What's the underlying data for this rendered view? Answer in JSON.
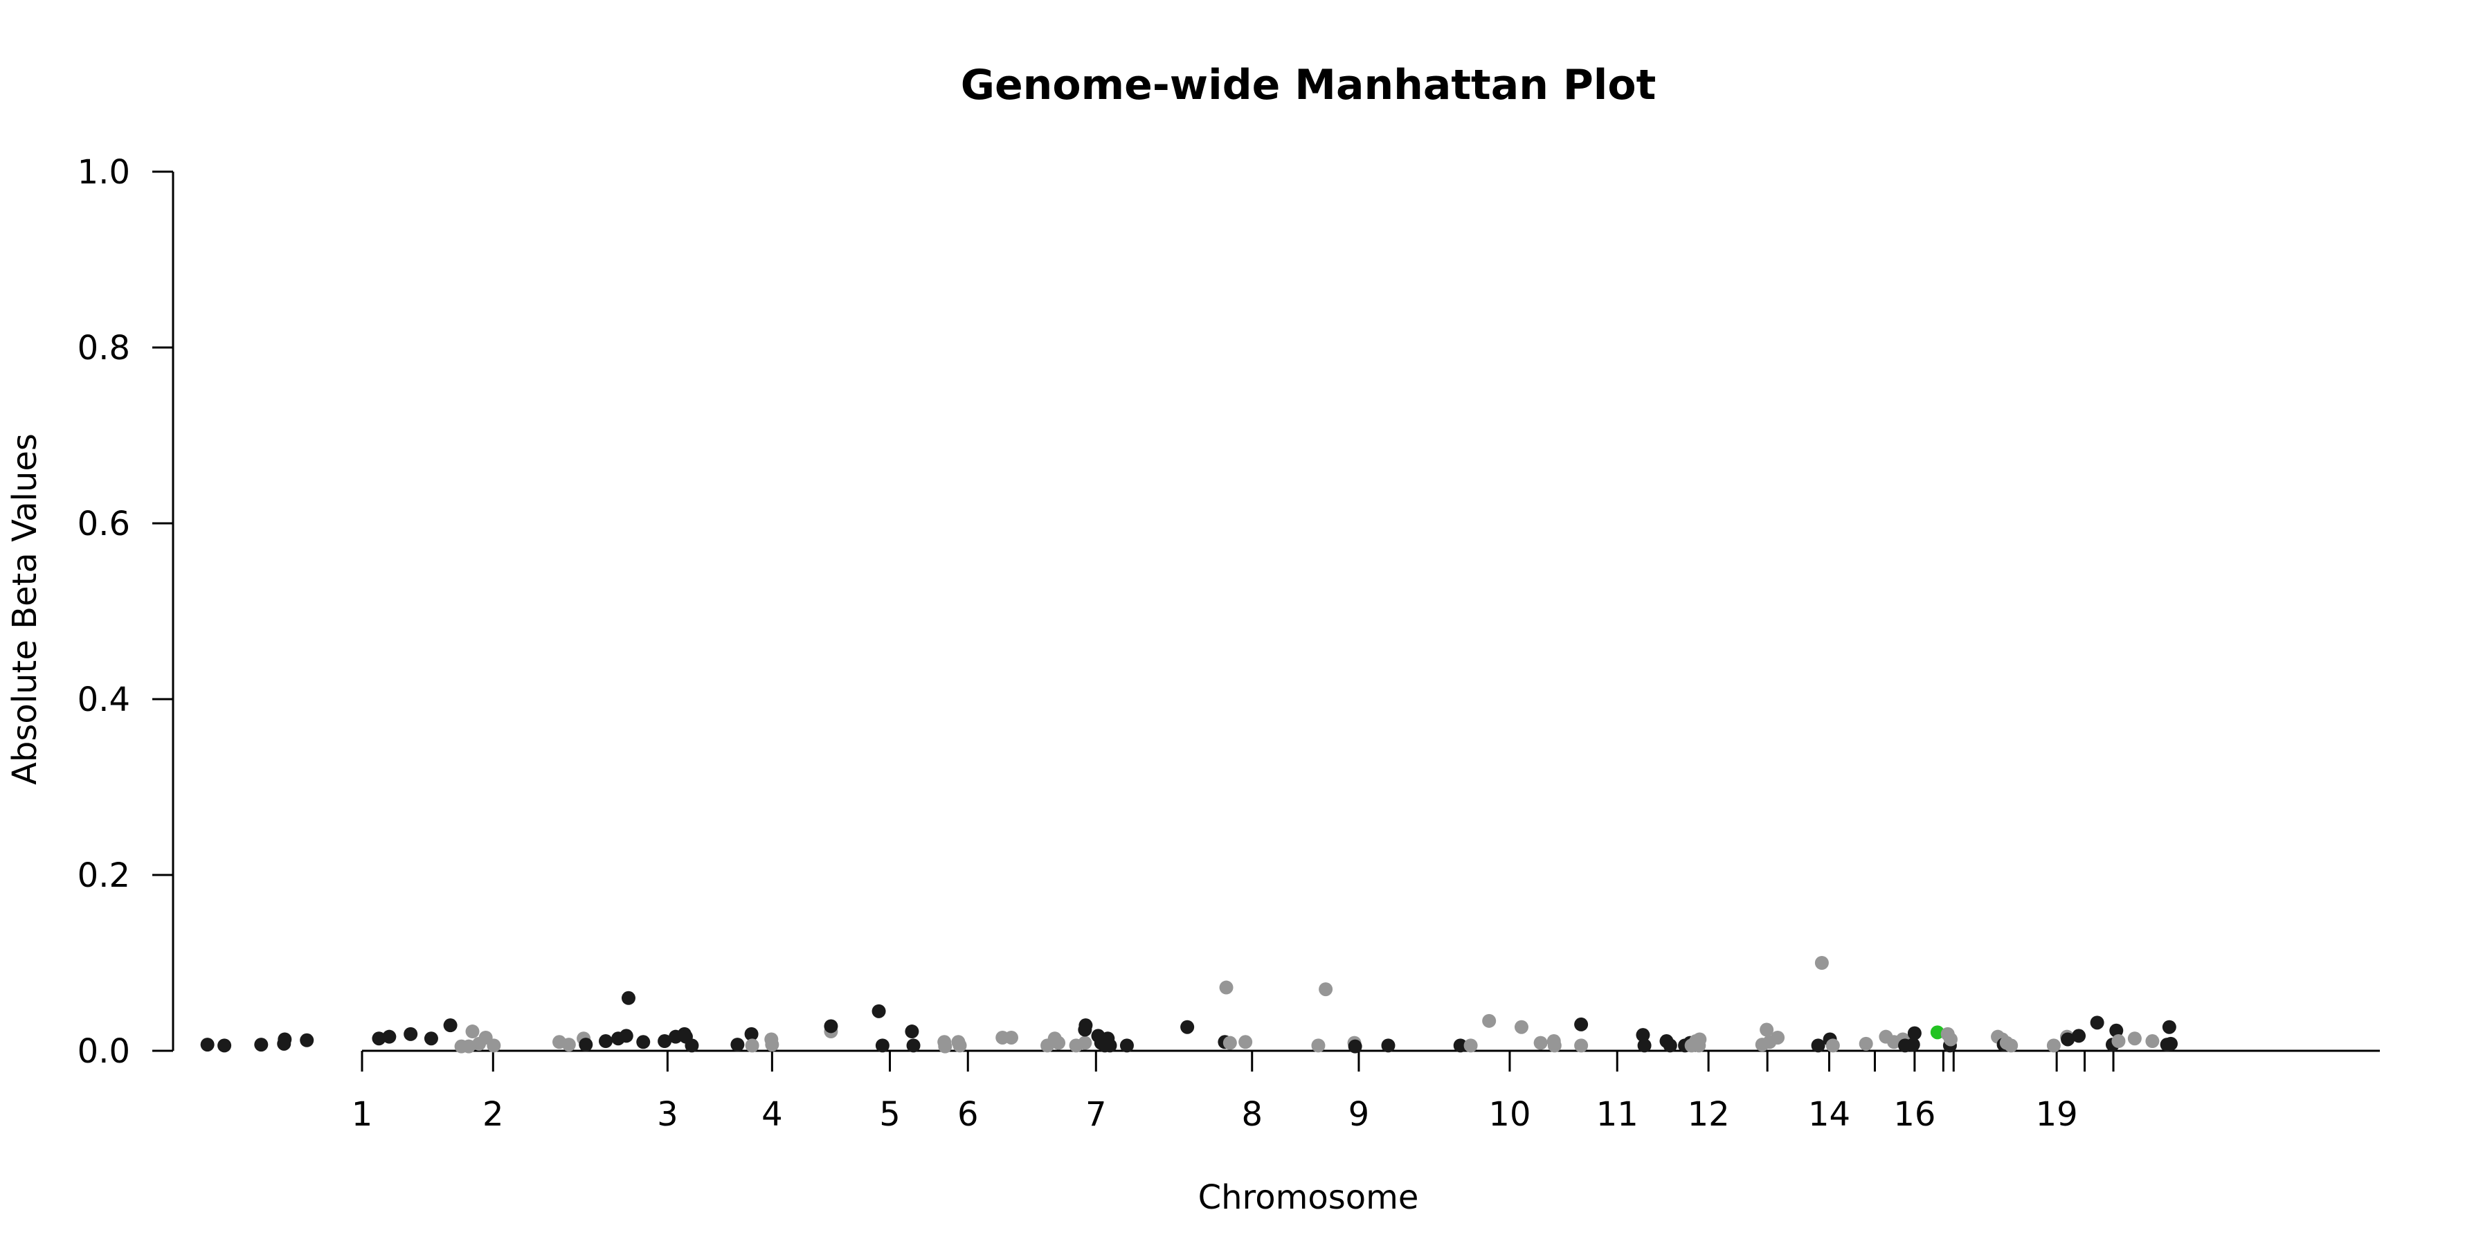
{
  "chart_data": {
    "type": "scatter",
    "title": "Genome-wide Manhattan Plot",
    "xlabel": "Chromosome",
    "ylabel": "Absolute Beta Values",
    "ylim": [
      0,
      1
    ],
    "xlim": [
      0,
      2993
    ],
    "y_ticks": [
      {
        "value": 0.0,
        "label": "0.0"
      },
      {
        "value": 0.2,
        "label": "0.2"
      },
      {
        "value": 0.4,
        "label": "0.4"
      },
      {
        "value": 0.6,
        "label": "0.6"
      },
      {
        "value": 0.8,
        "label": "0.8"
      },
      {
        "value": 1.0,
        "label": "1.0"
      }
    ],
    "x_axis_start": 252,
    "x_ticks": [
      {
        "pos": 252,
        "label": "1"
      },
      {
        "pos": 430,
        "label": "2"
      },
      {
        "pos": 667,
        "label": "3"
      },
      {
        "pos": 809,
        "label": "4"
      },
      {
        "pos": 969,
        "label": "5"
      },
      {
        "pos": 1075,
        "label": "6"
      },
      {
        "pos": 1249,
        "label": "7"
      },
      {
        "pos": 1461,
        "label": "8"
      },
      {
        "pos": 1606,
        "label": "9"
      },
      {
        "pos": 1811,
        "label": "10"
      },
      {
        "pos": 1957,
        "label": "11"
      },
      {
        "pos": 2081,
        "label": "12"
      },
      {
        "pos": 2161,
        "label": ""
      },
      {
        "pos": 2245,
        "label": "14"
      },
      {
        "pos": 2307,
        "label": ""
      },
      {
        "pos": 2361,
        "label": "16"
      },
      {
        "pos": 2400,
        "label": ""
      },
      {
        "pos": 2414,
        "label": ""
      },
      {
        "pos": 2554,
        "label": "19"
      },
      {
        "pos": 2592,
        "label": ""
      },
      {
        "pos": 2631,
        "label": ""
      }
    ],
    "colors": {
      "dark": "#1a1a1a",
      "light": "#969696",
      "highlight": "#22c322"
    },
    "grid": false,
    "legend": "none",
    "points": [
      {
        "x": 42,
        "y": 0.007,
        "c": "dark"
      },
      {
        "x": 65,
        "y": 0.006,
        "c": "dark"
      },
      {
        "x": 115,
        "y": 0.007,
        "c": "dark"
      },
      {
        "x": 146,
        "y": 0.008,
        "c": "dark"
      },
      {
        "x": 147,
        "y": 0.013,
        "c": "dark"
      },
      {
        "x": 177,
        "y": 0.012,
        "c": "dark"
      },
      {
        "x": 275,
        "y": 0.014,
        "c": "dark"
      },
      {
        "x": 289,
        "y": 0.016,
        "c": "dark"
      },
      {
        "x": 318,
        "y": 0.019,
        "c": "dark"
      },
      {
        "x": 346,
        "y": 0.014,
        "c": "dark"
      },
      {
        "x": 372,
        "y": 0.029,
        "c": "dark"
      },
      {
        "x": 387,
        "y": 0.005,
        "c": "light"
      },
      {
        "x": 397,
        "y": 0.005,
        "c": "light"
      },
      {
        "x": 402,
        "y": 0.022,
        "c": "light"
      },
      {
        "x": 411,
        "y": 0.008,
        "c": "light"
      },
      {
        "x": 420,
        "y": 0.015,
        "c": "light"
      },
      {
        "x": 431,
        "y": 0.006,
        "c": "light"
      },
      {
        "x": 520,
        "y": 0.01,
        "c": "light"
      },
      {
        "x": 533,
        "y": 0.007,
        "c": "light"
      },
      {
        "x": 553,
        "y": 0.014,
        "c": "light"
      },
      {
        "x": 556,
        "y": 0.007,
        "c": "dark"
      },
      {
        "x": 583,
        "y": 0.011,
        "c": "dark"
      },
      {
        "x": 600,
        "y": 0.014,
        "c": "dark"
      },
      {
        "x": 611,
        "y": 0.017,
        "c": "dark"
      },
      {
        "x": 614,
        "y": 0.06,
        "c": "dark"
      },
      {
        "x": 634,
        "y": 0.01,
        "c": "dark"
      },
      {
        "x": 663,
        "y": 0.011,
        "c": "dark"
      },
      {
        "x": 678,
        "y": 0.016,
        "c": "dark"
      },
      {
        "x": 690,
        "y": 0.019,
        "c": "dark"
      },
      {
        "x": 692,
        "y": 0.016,
        "c": "dark"
      },
      {
        "x": 700,
        "y": 0.006,
        "c": "dark"
      },
      {
        "x": 762,
        "y": 0.007,
        "c": "dark"
      },
      {
        "x": 781,
        "y": 0.019,
        "c": "dark"
      },
      {
        "x": 782,
        "y": 0.006,
        "c": "light"
      },
      {
        "x": 808,
        "y": 0.013,
        "c": "light"
      },
      {
        "x": 809,
        "y": 0.007,
        "c": "light"
      },
      {
        "x": 889,
        "y": 0.022,
        "c": "light"
      },
      {
        "x": 889,
        "y": 0.028,
        "c": "dark"
      },
      {
        "x": 954,
        "y": 0.045,
        "c": "dark"
      },
      {
        "x": 959,
        "y": 0.006,
        "c": "dark"
      },
      {
        "x": 999,
        "y": 0.022,
        "c": "dark"
      },
      {
        "x": 1001,
        "y": 0.006,
        "c": "dark"
      },
      {
        "x": 1043,
        "y": 0.01,
        "c": "light"
      },
      {
        "x": 1044,
        "y": 0.005,
        "c": "light"
      },
      {
        "x": 1062,
        "y": 0.01,
        "c": "light"
      },
      {
        "x": 1064,
        "y": 0.006,
        "c": "light"
      },
      {
        "x": 1122,
        "y": 0.015,
        "c": "light"
      },
      {
        "x": 1134,
        "y": 0.015,
        "c": "light"
      },
      {
        "x": 1183,
        "y": 0.006,
        "c": "light"
      },
      {
        "x": 1193,
        "y": 0.014,
        "c": "light"
      },
      {
        "x": 1198,
        "y": 0.009,
        "c": "light"
      },
      {
        "x": 1222,
        "y": 0.006,
        "c": "light"
      },
      {
        "x": 1234,
        "y": 0.009,
        "c": "light"
      },
      {
        "x": 1234,
        "y": 0.024,
        "c": "dark"
      },
      {
        "x": 1235,
        "y": 0.029,
        "c": "dark"
      },
      {
        "x": 1252,
        "y": 0.017,
        "c": "dark"
      },
      {
        "x": 1256,
        "y": 0.009,
        "c": "dark"
      },
      {
        "x": 1261,
        "y": 0.006,
        "c": "dark"
      },
      {
        "x": 1265,
        "y": 0.014,
        "c": "dark"
      },
      {
        "x": 1268,
        "y": 0.006,
        "c": "dark"
      },
      {
        "x": 1291,
        "y": 0.006,
        "c": "dark"
      },
      {
        "x": 1373,
        "y": 0.027,
        "c": "dark"
      },
      {
        "x": 1424,
        "y": 0.01,
        "c": "dark"
      },
      {
        "x": 1426,
        "y": 0.072,
        "c": "light"
      },
      {
        "x": 1431,
        "y": 0.009,
        "c": "light"
      },
      {
        "x": 1452,
        "y": 0.01,
        "c": "light"
      },
      {
        "x": 1551,
        "y": 0.006,
        "c": "light"
      },
      {
        "x": 1561,
        "y": 0.07,
        "c": "light"
      },
      {
        "x": 1600,
        "y": 0.009,
        "c": "light"
      },
      {
        "x": 1601,
        "y": 0.005,
        "c": "dark"
      },
      {
        "x": 1646,
        "y": 0.006,
        "c": "dark"
      },
      {
        "x": 1744,
        "y": 0.006,
        "c": "dark"
      },
      {
        "x": 1758,
        "y": 0.006,
        "c": "light"
      },
      {
        "x": 1783,
        "y": 0.034,
        "c": "light"
      },
      {
        "x": 1827,
        "y": 0.027,
        "c": "light"
      },
      {
        "x": 1853,
        "y": 0.009,
        "c": "light"
      },
      {
        "x": 1871,
        "y": 0.011,
        "c": "light"
      },
      {
        "x": 1872,
        "y": 0.006,
        "c": "light"
      },
      {
        "x": 1908,
        "y": 0.006,
        "c": "light"
      },
      {
        "x": 1908,
        "y": 0.03,
        "c": "dark"
      },
      {
        "x": 1992,
        "y": 0.018,
        "c": "dark"
      },
      {
        "x": 1994,
        "y": 0.006,
        "c": "dark"
      },
      {
        "x": 2024,
        "y": 0.011,
        "c": "dark"
      },
      {
        "x": 2029,
        "y": 0.006,
        "c": "dark"
      },
      {
        "x": 2049,
        "y": 0.006,
        "c": "dark"
      },
      {
        "x": 2056,
        "y": 0.009,
        "c": "dark"
      },
      {
        "x": 2058,
        "y": 0.006,
        "c": "light"
      },
      {
        "x": 2064,
        "y": 0.011,
        "c": "light"
      },
      {
        "x": 2068,
        "y": 0.006,
        "c": "light"
      },
      {
        "x": 2069,
        "y": 0.013,
        "c": "light"
      },
      {
        "x": 2154,
        "y": 0.007,
        "c": "light"
      },
      {
        "x": 2160,
        "y": 0.024,
        "c": "light"
      },
      {
        "x": 2164,
        "y": 0.01,
        "c": "light"
      },
      {
        "x": 2175,
        "y": 0.015,
        "c": "light"
      },
      {
        "x": 2230,
        "y": 0.006,
        "c": "dark"
      },
      {
        "x": 2235,
        "y": 0.1,
        "c": "light"
      },
      {
        "x": 2246,
        "y": 0.013,
        "c": "dark"
      },
      {
        "x": 2250,
        "y": 0.006,
        "c": "light"
      },
      {
        "x": 2295,
        "y": 0.008,
        "c": "light"
      },
      {
        "x": 2322,
        "y": 0.016,
        "c": "light"
      },
      {
        "x": 2333,
        "y": 0.01,
        "c": "light"
      },
      {
        "x": 2345,
        "y": 0.013,
        "c": "light"
      },
      {
        "x": 2348,
        "y": 0.006,
        "c": "dark"
      },
      {
        "x": 2359,
        "y": 0.007,
        "c": "dark"
      },
      {
        "x": 2361,
        "y": 0.02,
        "c": "dark"
      },
      {
        "x": 2392,
        "y": 0.021,
        "c": "highlight"
      },
      {
        "x": 2406,
        "y": 0.019,
        "c": "light"
      },
      {
        "x": 2409,
        "y": 0.006,
        "c": "dark"
      },
      {
        "x": 2410,
        "y": 0.013,
        "c": "light"
      },
      {
        "x": 2474,
        "y": 0.016,
        "c": "light"
      },
      {
        "x": 2480,
        "y": 0.013,
        "c": "light"
      },
      {
        "x": 2482,
        "y": 0.007,
        "c": "dark"
      },
      {
        "x": 2486,
        "y": 0.009,
        "c": "light"
      },
      {
        "x": 2492,
        "y": 0.006,
        "c": "light"
      },
      {
        "x": 2550,
        "y": 0.006,
        "c": "light"
      },
      {
        "x": 2568,
        "y": 0.016,
        "c": "light"
      },
      {
        "x": 2569,
        "y": 0.013,
        "c": "dark"
      },
      {
        "x": 2584,
        "y": 0.017,
        "c": "dark"
      },
      {
        "x": 2609,
        "y": 0.032,
        "c": "dark"
      },
      {
        "x": 2630,
        "y": 0.007,
        "c": "dark"
      },
      {
        "x": 2635,
        "y": 0.023,
        "c": "dark"
      },
      {
        "x": 2638,
        "y": 0.011,
        "c": "light"
      },
      {
        "x": 2660,
        "y": 0.014,
        "c": "light"
      },
      {
        "x": 2684,
        "y": 0.011,
        "c": "light"
      },
      {
        "x": 2704,
        "y": 0.007,
        "c": "dark"
      },
      {
        "x": 2707,
        "y": 0.027,
        "c": "dark"
      },
      {
        "x": 2709,
        "y": 0.008,
        "c": "dark"
      }
    ]
  }
}
